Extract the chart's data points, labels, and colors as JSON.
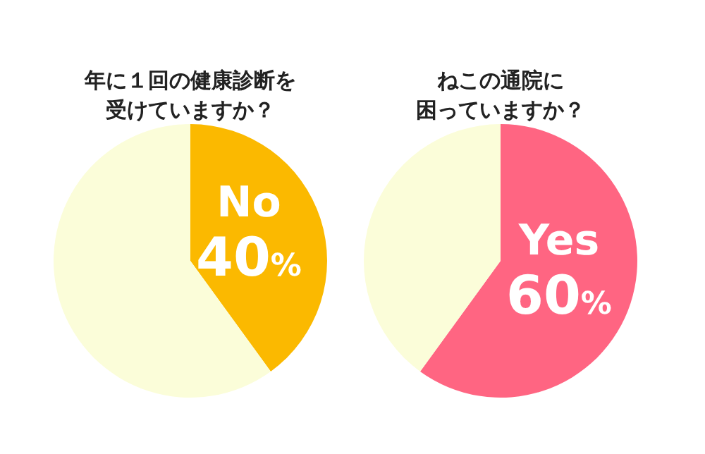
{
  "chart_data": [
    {
      "type": "pie",
      "title": "年に１回の健康診断を受けていますか？",
      "categories": [
        "No",
        null
      ],
      "values": [
        40,
        60
      ],
      "colors": [
        "#fbb900",
        "#fbfdd9"
      ],
      "value_labels": [
        "40%",
        null
      ]
    },
    {
      "type": "pie",
      "title": "ねこの通院に困っていますか？",
      "categories": [
        "Yes",
        null
      ],
      "values": [
        60,
        40
      ],
      "colors": [
        "#ff6582",
        "#fbfdd9"
      ],
      "value_labels": [
        "60%",
        null
      ]
    }
  ]
}
